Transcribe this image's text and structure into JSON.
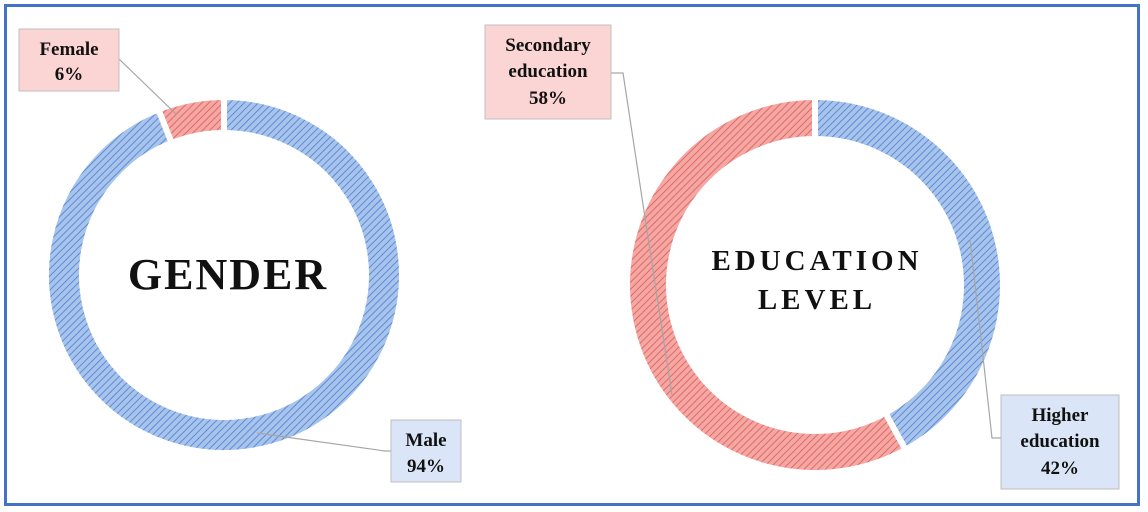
{
  "colors": {
    "frame": "#4472C4",
    "blue_fill": "#A9C4EB",
    "blue_hatch": "#5B8BD9",
    "red_fill": "#F4A7A3",
    "red_hatch": "#E06A66",
    "blue_label_bg": "#DAE6F7",
    "red_label_bg": "#FBD5D3",
    "leader": "#A6A6A6"
  },
  "chart_data": [
    {
      "type": "pie",
      "style": "donut",
      "center_title": "GENDER",
      "slices": [
        {
          "label": "Female",
          "value": 6,
          "value_label": "6%",
          "color": "red"
        },
        {
          "label": "Male",
          "value": 94,
          "value_label": "94%",
          "color": "blue"
        }
      ]
    },
    {
      "type": "pie",
      "style": "donut",
      "center_title": [
        "EDUCATION",
        "LEVEL"
      ],
      "slices": [
        {
          "label": "Higher education",
          "label_lines": [
            "Higher",
            "education"
          ],
          "value": 42,
          "value_label": "42%",
          "color": "blue"
        },
        {
          "label": "Secondary education",
          "label_lines": [
            "Secondary",
            "education"
          ],
          "value": 58,
          "value_label": "58%",
          "color": "red"
        }
      ]
    }
  ]
}
